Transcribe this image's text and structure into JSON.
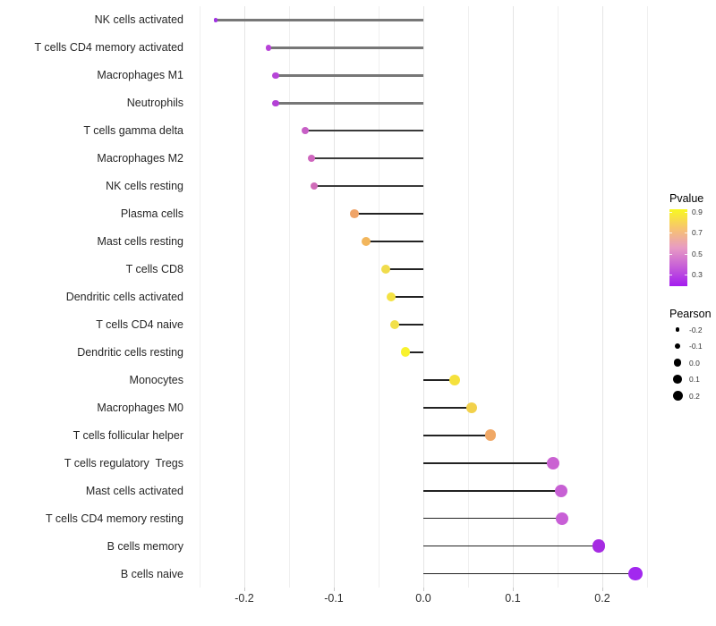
{
  "chart_data": {
    "type": "lollipop",
    "title": "",
    "xlabel": "",
    "ylabel": "",
    "grid": "vertical-only",
    "x_axis": {
      "tick_labels": [
        "-0.2",
        "-0.1",
        "0.0",
        "0.1",
        "0.2"
      ],
      "tick_values": [
        -0.2,
        -0.1,
        0.0,
        0.1,
        0.2
      ],
      "range": [
        -0.262,
        0.262
      ],
      "gridline_interval": 0.05
    },
    "points": [
      {
        "label": "NK cells activated",
        "pearson": -0.232,
        "color": "#A032E2"
      },
      {
        "label": "T cells CD4 memory activated",
        "pearson": -0.173,
        "color": "#B843D8"
      },
      {
        "label": "Macrophages M1",
        "pearson": -0.165,
        "color": "#B645D8"
      },
      {
        "label": "Neutrophils",
        "pearson": -0.165,
        "color": "#B441D6"
      },
      {
        "label": "T cells gamma delta",
        "pearson": -0.132,
        "color": "#C75FC6"
      },
      {
        "label": "Macrophages M2",
        "pearson": -0.125,
        "color": "#CF66BE"
      },
      {
        "label": "NK cells resting",
        "pearson": -0.122,
        "color": "#D06CB9"
      },
      {
        "label": "Plasma cells",
        "pearson": -0.077,
        "color": "#EFA468"
      },
      {
        "label": "Mast cells resting",
        "pearson": -0.064,
        "color": "#F2B65C"
      },
      {
        "label": "T cells CD8",
        "pearson": -0.042,
        "color": "#F0DC4C"
      },
      {
        "label": "Dendritic cells activated",
        "pearson": -0.036,
        "color": "#F4E243"
      },
      {
        "label": "T cells CD4 naive",
        "pearson": -0.032,
        "color": "#F2E04A"
      },
      {
        "label": "Dendritic cells resting",
        "pearson": -0.02,
        "color": "#F8F22E"
      },
      {
        "label": "Monocytes",
        "pearson": 0.035,
        "color": "#F5E13C"
      },
      {
        "label": "Macrophages M0",
        "pearson": 0.054,
        "color": "#F2D14B"
      },
      {
        "label": "T cells follicular helper",
        "pearson": 0.075,
        "color": "#F0A866"
      },
      {
        "label": "T cells regulatory  Tregs",
        "pearson": 0.145,
        "color": "#CA62D2"
      },
      {
        "label": "Mast cells activated",
        "pearson": 0.154,
        "color": "#C760D4"
      },
      {
        "label": "T cells CD4 memory resting",
        "pearson": 0.155,
        "color": "#C85FD6"
      },
      {
        "label": "B cells memory",
        "pearson": 0.196,
        "color": "#A62BE2"
      },
      {
        "label": "B cells naive",
        "pearson": 0.237,
        "color": "#A228EF"
      }
    ],
    "color_legend": {
      "title": "Pvalue",
      "tick_labels": [
        "0.9",
        "0.7",
        "0.5",
        "0.3"
      ],
      "gradient_stops_top_to_bottom": [
        "#F8F821",
        "#F7C46F",
        "#E89BC3",
        "#C65ED8",
        "#A41CEF"
      ]
    },
    "size_legend": {
      "title": "Pearson",
      "entries": [
        {
          "label": "-0.2",
          "value": -0.2
        },
        {
          "label": "-0.1",
          "value": -0.1
        },
        {
          "label": "0.0",
          "value": 0.0
        },
        {
          "label": "0.1",
          "value": 0.1
        },
        {
          "label": "0.2",
          "value": 0.2
        }
      ]
    }
  }
}
